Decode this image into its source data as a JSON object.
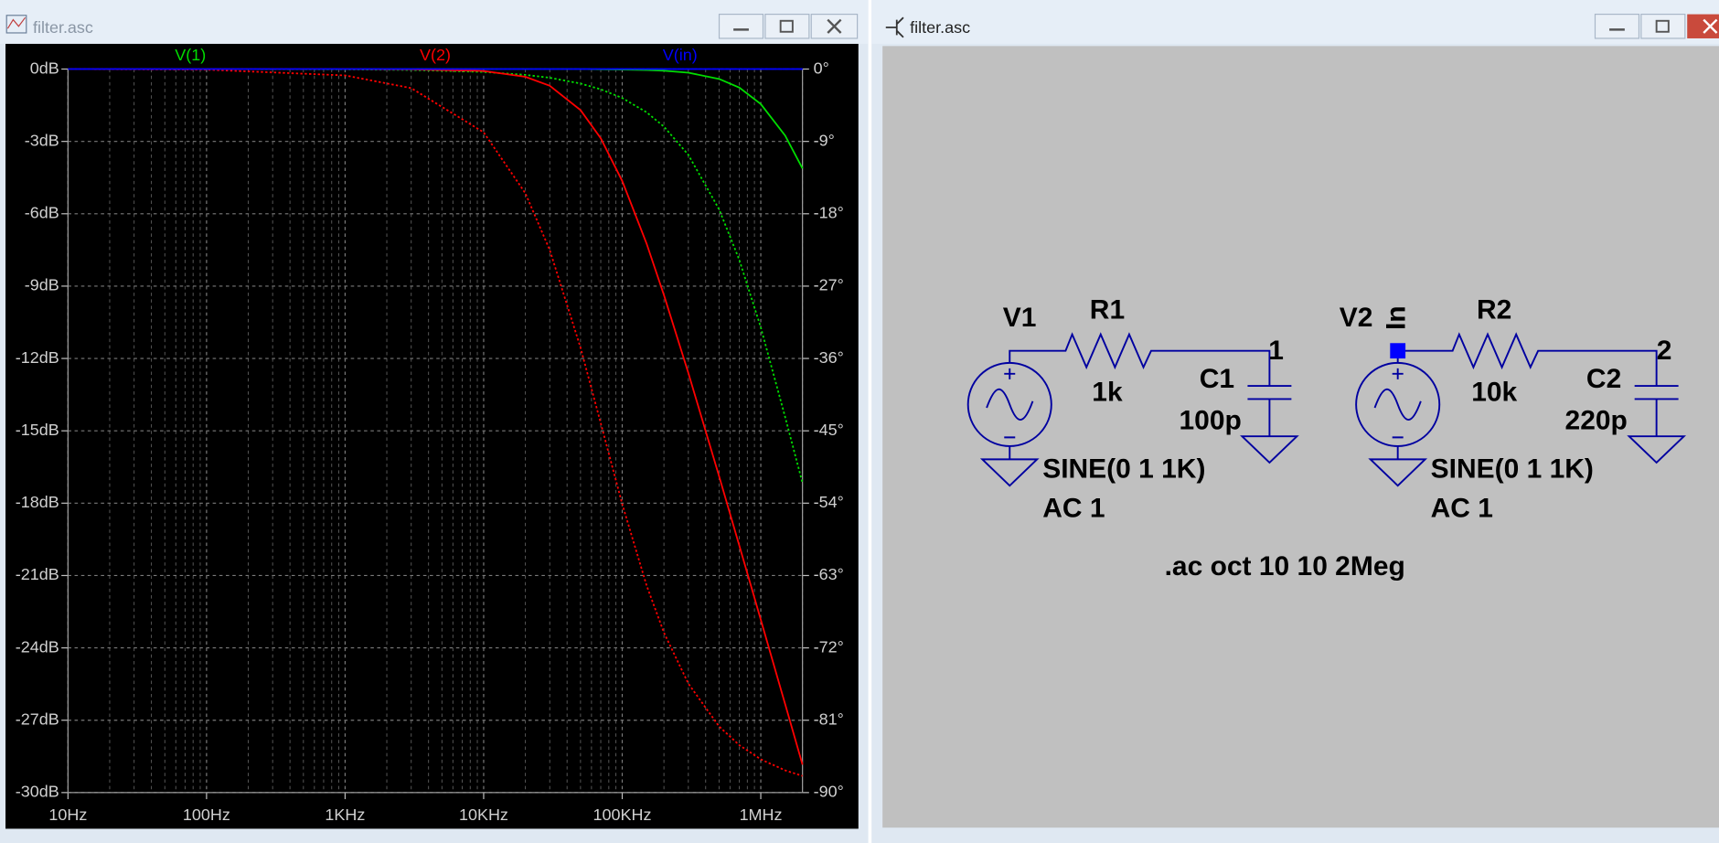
{
  "plot_window": {
    "title": "filter.asc"
  },
  "schematic": {
    "title": "filter.asc",
    "v1": {
      "name": "V1",
      "value": "SINE(0 1 1K)",
      "ac": "AC 1"
    },
    "r1": {
      "name": "R1",
      "value": "1k"
    },
    "c1": {
      "name": "C1",
      "value": "100p"
    },
    "node1": "1",
    "v2": {
      "name": "V2",
      "value": "SINE(0 1 1K)",
      "ac": "AC 1"
    },
    "net_label": "In",
    "r2": {
      "name": "R2",
      "value": "10k"
    },
    "c2": {
      "name": "C2",
      "value": "220p"
    },
    "node2": "2",
    "directive": ".ac oct 10 10 2Meg"
  },
  "chart_data": {
    "type": "line",
    "xscale": "log",
    "x": [
      10,
      100,
      1000,
      3000,
      10000,
      20000,
      30000,
      50000,
      70000,
      100000,
      150000,
      200000,
      300000,
      500000,
      700000,
      1000000,
      1500000,
      2000000
    ],
    "series": [
      {
        "name": "V(1)",
        "color": "#00dd00",
        "values": [
          0,
          0,
          0,
          0,
          0,
          0,
          0,
          0,
          -0.01,
          -0.02,
          -0.04,
          -0.07,
          -0.15,
          -0.41,
          -0.77,
          -1.45,
          -2.76,
          -4.12
        ],
        "phase_values": [
          0,
          0,
          -0.04,
          -0.11,
          -0.36,
          -0.72,
          -1.08,
          -1.8,
          -2.52,
          -3.6,
          -5.38,
          -7.16,
          -10.67,
          -17.44,
          -23.74,
          -32.14,
          -43.3,
          -51.49
        ]
      },
      {
        "name": "V(2)",
        "color": "#ff0000",
        "values": [
          0,
          0,
          0,
          -0.01,
          -0.08,
          -0.32,
          -0.69,
          -1.7,
          -2.87,
          -4.64,
          -7.24,
          -9.37,
          -12.6,
          -16.88,
          -19.76,
          -22.83,
          -26.34,
          -28.84
        ],
        "phase_values": [
          0,
          -0.08,
          -0.79,
          -2.37,
          -7.87,
          -15.45,
          -22.52,
          -34.65,
          -44.06,
          -54.11,
          -64.25,
          -70.11,
          -76.44,
          -81.77,
          -84.1,
          -85.86,
          -87.24,
          -87.93
        ]
      },
      {
        "name": "V(in)",
        "color": "#0000ff",
        "values": [
          0,
          0,
          0,
          0,
          0,
          0,
          0,
          0,
          0,
          0,
          0,
          0,
          0,
          0,
          0,
          0,
          0,
          0
        ],
        "phase_values": [
          0,
          0,
          0,
          0,
          0,
          0,
          0,
          0,
          0,
          0,
          0,
          0,
          0,
          0,
          0,
          0,
          0,
          0
        ]
      }
    ],
    "xlim": [
      10,
      2000000
    ],
    "xticks": [
      {
        "value": 10,
        "label": "10Hz"
      },
      {
        "value": 100,
        "label": "100Hz"
      },
      {
        "value": 1000,
        "label": "1KHz"
      },
      {
        "value": 10000,
        "label": "10KHz"
      },
      {
        "value": 100000,
        "label": "100KHz"
      },
      {
        "value": 1000000,
        "label": "1MHz"
      }
    ],
    "ylim": [
      -30,
      0
    ],
    "yticks": [
      {
        "value": 0,
        "label": "0dB"
      },
      {
        "value": -3,
        "label": "-3dB"
      },
      {
        "value": -6,
        "label": "-6dB"
      },
      {
        "value": -9,
        "label": "-9dB"
      },
      {
        "value": -12,
        "label": "-12dB"
      },
      {
        "value": -15,
        "label": "-15dB"
      },
      {
        "value": -18,
        "label": "-18dB"
      },
      {
        "value": -21,
        "label": "-21dB"
      },
      {
        "value": -24,
        "label": "-24dB"
      },
      {
        "value": -27,
        "label": "-27dB"
      },
      {
        "value": -30,
        "label": "-30dB"
      }
    ],
    "y2lim": [
      -90,
      0
    ],
    "y2ticks": [
      {
        "value": 0,
        "label": "0°"
      },
      {
        "value": -9,
        "label": "-9°"
      },
      {
        "value": -18,
        "label": "-18°"
      },
      {
        "value": -27,
        "label": "-27°"
      },
      {
        "value": -36,
        "label": "-36°"
      },
      {
        "value": -45,
        "label": "-45°"
      },
      {
        "value": -54,
        "label": "-54°"
      },
      {
        "value": -63,
        "label": "-63°"
      },
      {
        "value": -72,
        "label": "-72°"
      },
      {
        "value": -81,
        "label": "-81°"
      },
      {
        "value": -90,
        "label": "-90°"
      }
    ],
    "grid": true
  }
}
